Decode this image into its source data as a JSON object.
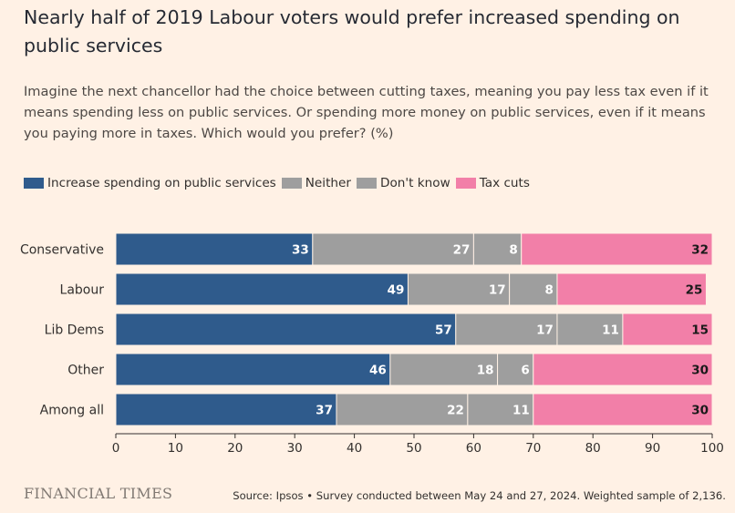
{
  "title": "Nearly half of 2019 Labour voters would prefer increased spending on public services",
  "subtitle": "Imagine the next chancellor had the choice between cutting taxes, meaning you pay less tax even if it means spending less on public services. Or spending more money on public services, even if it means you paying more in taxes. Which would you prefer? (%)",
  "legend": [
    {
      "label": "Increase spending on public services",
      "color": "#2f5b8c"
    },
    {
      "label": "Neither",
      "color": "#9e9e9e"
    },
    {
      "label": "Don't know",
      "color": "#9e9e9e"
    },
    {
      "label": "Tax cuts",
      "color": "#f27fa8"
    }
  ],
  "footer": {
    "brand": "FINANCIAL TIMES",
    "source": "Source: Ipsos • Survey conducted between May 24 and 27, 2024. Weighted sample of 2,136."
  },
  "chart_data": {
    "type": "bar",
    "orientation": "horizontal",
    "stacked": true,
    "categories": [
      "Conservative",
      "Labour",
      "Lib Dems",
      "Other",
      "Among all"
    ],
    "series": [
      {
        "name": "Increase spending on public services",
        "values": [
          33,
          49,
          57,
          46,
          37
        ],
        "color": "#2f5b8c"
      },
      {
        "name": "Neither",
        "values": [
          27,
          17,
          17,
          18,
          22
        ],
        "color": "#9e9e9e"
      },
      {
        "name": "Don't know",
        "values": [
          8,
          8,
          11,
          6,
          11
        ],
        "color": "#9e9e9e"
      },
      {
        "name": "Tax cuts",
        "values": [
          32,
          25,
          15,
          30,
          30
        ],
        "color": "#f27fa8"
      }
    ],
    "xlim": [
      0,
      100
    ],
    "xticks": [
      0,
      10,
      20,
      30,
      40,
      50,
      60,
      70,
      80,
      90,
      100
    ],
    "legend_position": "top-left",
    "grid": false
  }
}
